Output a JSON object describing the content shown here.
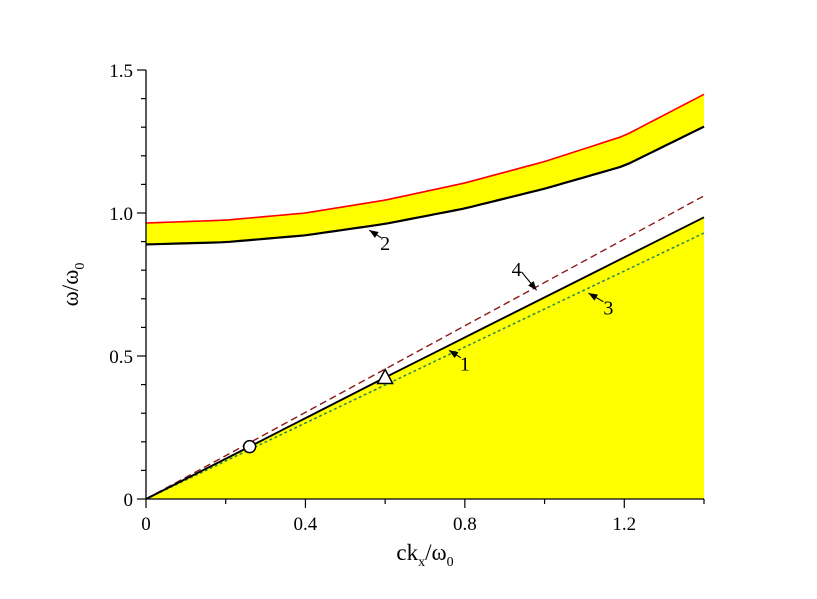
{
  "chart_data": {
    "type": "line",
    "xlabel": "ck_x/ω_0",
    "ylabel": "ω/ω_0",
    "xlabel_parts": {
      "main": "ck",
      "sub1": "x",
      "mid": "/ω",
      "sub2": "0"
    },
    "ylabel_parts": {
      "main": "ω/ω",
      "sub": "0"
    },
    "xlim": [
      0,
      1.4
    ],
    "ylim": [
      0,
      1.5
    ],
    "x_ticks": [
      {
        "value": 0,
        "label": "0"
      },
      {
        "value": 0.4,
        "label": "0.4"
      },
      {
        "value": 0.8,
        "label": "0.8"
      },
      {
        "value": 1.2,
        "label": "1.2"
      }
    ],
    "y_ticks": [
      {
        "value": 0,
        "label": "0"
      },
      {
        "value": 0.5,
        "label": "0.5"
      },
      {
        "value": 1.0,
        "label": "1.0"
      },
      {
        "value": 1.5,
        "label": "1.5"
      }
    ],
    "grid": false,
    "colors": {
      "band_fill": "#ffff00",
      "curve1": "#000000",
      "curve2": "#000000",
      "upper_band_edge": "#ff0000",
      "dashed4": "#8b1a1a",
      "dotted3": "#2e8b57"
    },
    "series": [
      {
        "label": "1",
        "style": "solid",
        "x": [
          0,
          0.26,
          0.6,
          1.0,
          1.4
        ],
        "y": [
          0,
          0.183,
          0.425,
          0.705,
          0.985
        ]
      },
      {
        "label": "2",
        "style": "solid",
        "x": [
          0,
          0.2,
          0.4,
          0.6,
          0.8,
          1.0,
          1.2,
          1.4
        ],
        "y": [
          0.89,
          0.898,
          0.922,
          0.962,
          1.016,
          1.085,
          1.165,
          1.302
        ]
      },
      {
        "label": "3",
        "style": "dotted",
        "x": [
          0,
          1.4
        ],
        "y": [
          0,
          0.93
        ]
      },
      {
        "label": "4",
        "style": "dashed",
        "x": [
          0,
          1.4
        ],
        "y": [
          0,
          1.06
        ]
      },
      {
        "style": "solid-red",
        "x": [
          0,
          0.2,
          0.4,
          0.6,
          0.8,
          1.0,
          1.2,
          1.4
        ],
        "y": [
          0.965,
          0.975,
          1.0,
          1.045,
          1.105,
          1.18,
          1.27,
          1.415
        ]
      }
    ],
    "markers": [
      {
        "shape": "circle",
        "x": 0.26,
        "y": 0.183
      },
      {
        "shape": "triangle",
        "x": 0.6,
        "y": 0.425
      }
    ],
    "annotations": [
      {
        "text": "1",
        "x": 0.8,
        "y": 0.45,
        "arrow_to": [
          0.76,
          0.52
        ]
      },
      {
        "text": "2",
        "x": 0.6,
        "y": 0.87,
        "arrow_to": [
          0.56,
          0.94
        ]
      },
      {
        "text": "3",
        "x": 1.16,
        "y": 0.645,
        "arrow_to": [
          1.11,
          0.72
        ]
      },
      {
        "text": "4",
        "x": 0.93,
        "y": 0.78,
        "arrow_to": [
          0.98,
          0.73
        ]
      }
    ]
  }
}
